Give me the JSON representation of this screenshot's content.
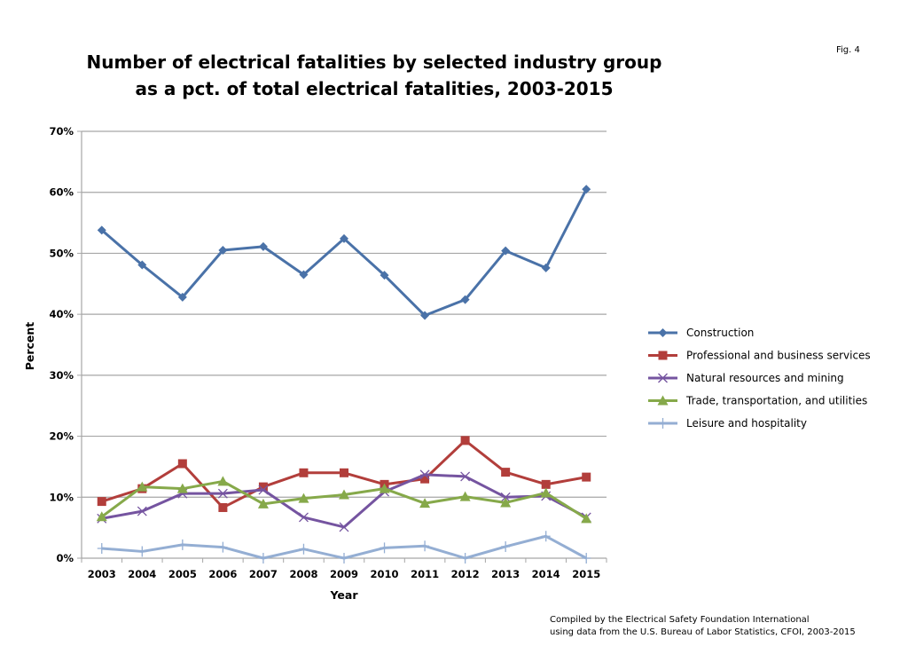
{
  "fig_label": "Fig. 4",
  "credit": [
    "Compiled by the Electrical Safety Foundation International",
    "using data from the U.S. Bureau of Labor Statistics, CFOI, 2003-2015"
  ],
  "chart_data": {
    "type": "line",
    "title": [
      "Number of electrical fatalities by selected industry group",
      "as a pct. of total electrical fatalities, 2003-2015"
    ],
    "xlabel": "Year",
    "ylabel": "Percent",
    "ylim": [
      0,
      70
    ],
    "yticks": [
      "0%",
      "10%",
      "20%",
      "30%",
      "40%",
      "50%",
      "60%",
      "70%"
    ],
    "grid": true,
    "legend_position": "right",
    "x": [
      "2003",
      "2004",
      "2005",
      "2006",
      "2007",
      "2008",
      "2009",
      "2010",
      "2011",
      "2012",
      "2013",
      "2014",
      "2015"
    ],
    "series": [
      {
        "name": "Construction",
        "color": "#4A72A8",
        "marker": "diamond",
        "values": [
          53.8,
          48.1,
          42.8,
          50.5,
          51.1,
          46.5,
          52.4,
          46.4,
          39.8,
          42.4,
          50.4,
          47.6,
          60.5
        ]
      },
      {
        "name": "Professional and business services",
        "color": "#B23E3B",
        "marker": "square",
        "values": [
          9.3,
          11.4,
          15.5,
          8.3,
          11.7,
          14.0,
          14.0,
          12.1,
          13.0,
          19.3,
          14.1,
          12.1,
          13.3
        ]
      },
      {
        "name": "Natural resources and mining",
        "color": "#7554A0",
        "marker": "x",
        "values": [
          6.5,
          7.7,
          10.6,
          10.6,
          11.2,
          6.7,
          5.1,
          10.9,
          13.7,
          13.4,
          10.0,
          10.2,
          6.7
        ]
      },
      {
        "name": "Trade, transportation, and utilities",
        "color": "#86A94A",
        "marker": "triangle",
        "values": [
          6.8,
          11.7,
          11.4,
          12.6,
          8.9,
          9.8,
          10.4,
          11.4,
          9.0,
          10.1,
          9.1,
          10.7,
          6.5
        ]
      },
      {
        "name": "Leisure and hospitality",
        "color": "#94AED3",
        "marker": "plus",
        "values": [
          1.6,
          1.1,
          2.2,
          1.8,
          0,
          1.5,
          0,
          1.7,
          2.0,
          0,
          1.9,
          3.6,
          0
        ]
      }
    ]
  }
}
